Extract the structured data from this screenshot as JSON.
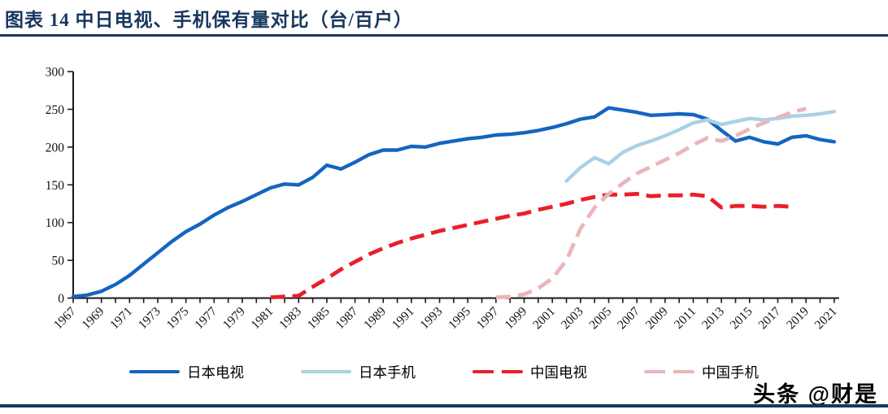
{
  "header": {
    "title": "图表 14  中日电视、手机保有量对比（台/百户）"
  },
  "legend": {
    "items": [
      {
        "label": "日本电视",
        "color": "#1565C0",
        "style": "solid"
      },
      {
        "label": "日本手机",
        "color": "#A9D2E4",
        "style": "solid"
      },
      {
        "label": "中国电视",
        "color": "#E8202A",
        "style": "dashed"
      },
      {
        "label": "中国手机",
        "color": "#EAB6BA",
        "style": "dashed"
      }
    ]
  },
  "watermark": {
    "text": "头条 @财是"
  },
  "chart_data": {
    "type": "line",
    "title": "图表 14  中日电视、手机保有量对比（台/百户）",
    "unit": "台/百户",
    "xlabel": "",
    "ylabel": "",
    "ylim": [
      0,
      300
    ],
    "yticks": [
      0,
      50,
      100,
      150,
      200,
      250,
      300
    ],
    "x_range": [
      1967,
      2021
    ],
    "xtick_every_year": true,
    "x_years_labeled": [
      1967,
      1969,
      1971,
      1973,
      1975,
      1977,
      1979,
      1981,
      1983,
      1985,
      1987,
      1989,
      1991,
      1993,
      1995,
      1997,
      1999,
      2001,
      2003,
      2005,
      2007,
      2009,
      2011,
      2013,
      2015,
      2017,
      2019,
      2021
    ],
    "grid": false,
    "legend_position": "bottom",
    "series": [
      {
        "name": "日本电视",
        "color": "#1565C0",
        "dash": false,
        "start_year": 1967,
        "values": [
          2,
          4,
          9,
          18,
          30,
          45,
          60,
          75,
          88,
          98,
          110,
          120,
          128,
          137,
          146,
          151,
          150,
          160,
          176,
          171,
          180,
          190,
          196,
          196,
          201,
          200,
          205,
          208,
          211,
          213,
          216,
          217,
          219,
          222,
          226,
          231,
          237,
          240,
          252,
          249,
          246,
          242,
          243,
          244,
          243,
          237,
          222,
          208,
          213,
          207,
          204,
          213,
          215,
          210,
          207
        ]
      },
      {
        "name": "日本手机",
        "color": "#A9D2E4",
        "dash": false,
        "start_year": 2002,
        "values": [
          155,
          173,
          186,
          178,
          193,
          202,
          208,
          215,
          223,
          232,
          236,
          230,
          234,
          238,
          236,
          238,
          241,
          242,
          244,
          247
        ]
      },
      {
        "name": "中国电视",
        "color": "#E8202A",
        "dash": true,
        "start_year": 1981,
        "values": [
          1,
          2,
          3,
          15,
          26,
          38,
          48,
          58,
          66,
          73,
          79,
          84,
          89,
          93,
          97,
          101,
          105,
          109,
          112,
          117,
          121,
          125,
          130,
          134,
          137,
          137,
          138,
          135,
          136,
          136,
          137,
          135,
          120,
          122,
          122,
          121,
          122,
          121
        ]
      },
      {
        "name": "中国手机",
        "color": "#EAB6BA",
        "dash": true,
        "start_year": 1997,
        "values": [
          1,
          2,
          5,
          13,
          26,
          50,
          92,
          120,
          138,
          152,
          165,
          174,
          183,
          192,
          203,
          212,
          208,
          215,
          224,
          232,
          239,
          246,
          251
        ]
      }
    ]
  }
}
